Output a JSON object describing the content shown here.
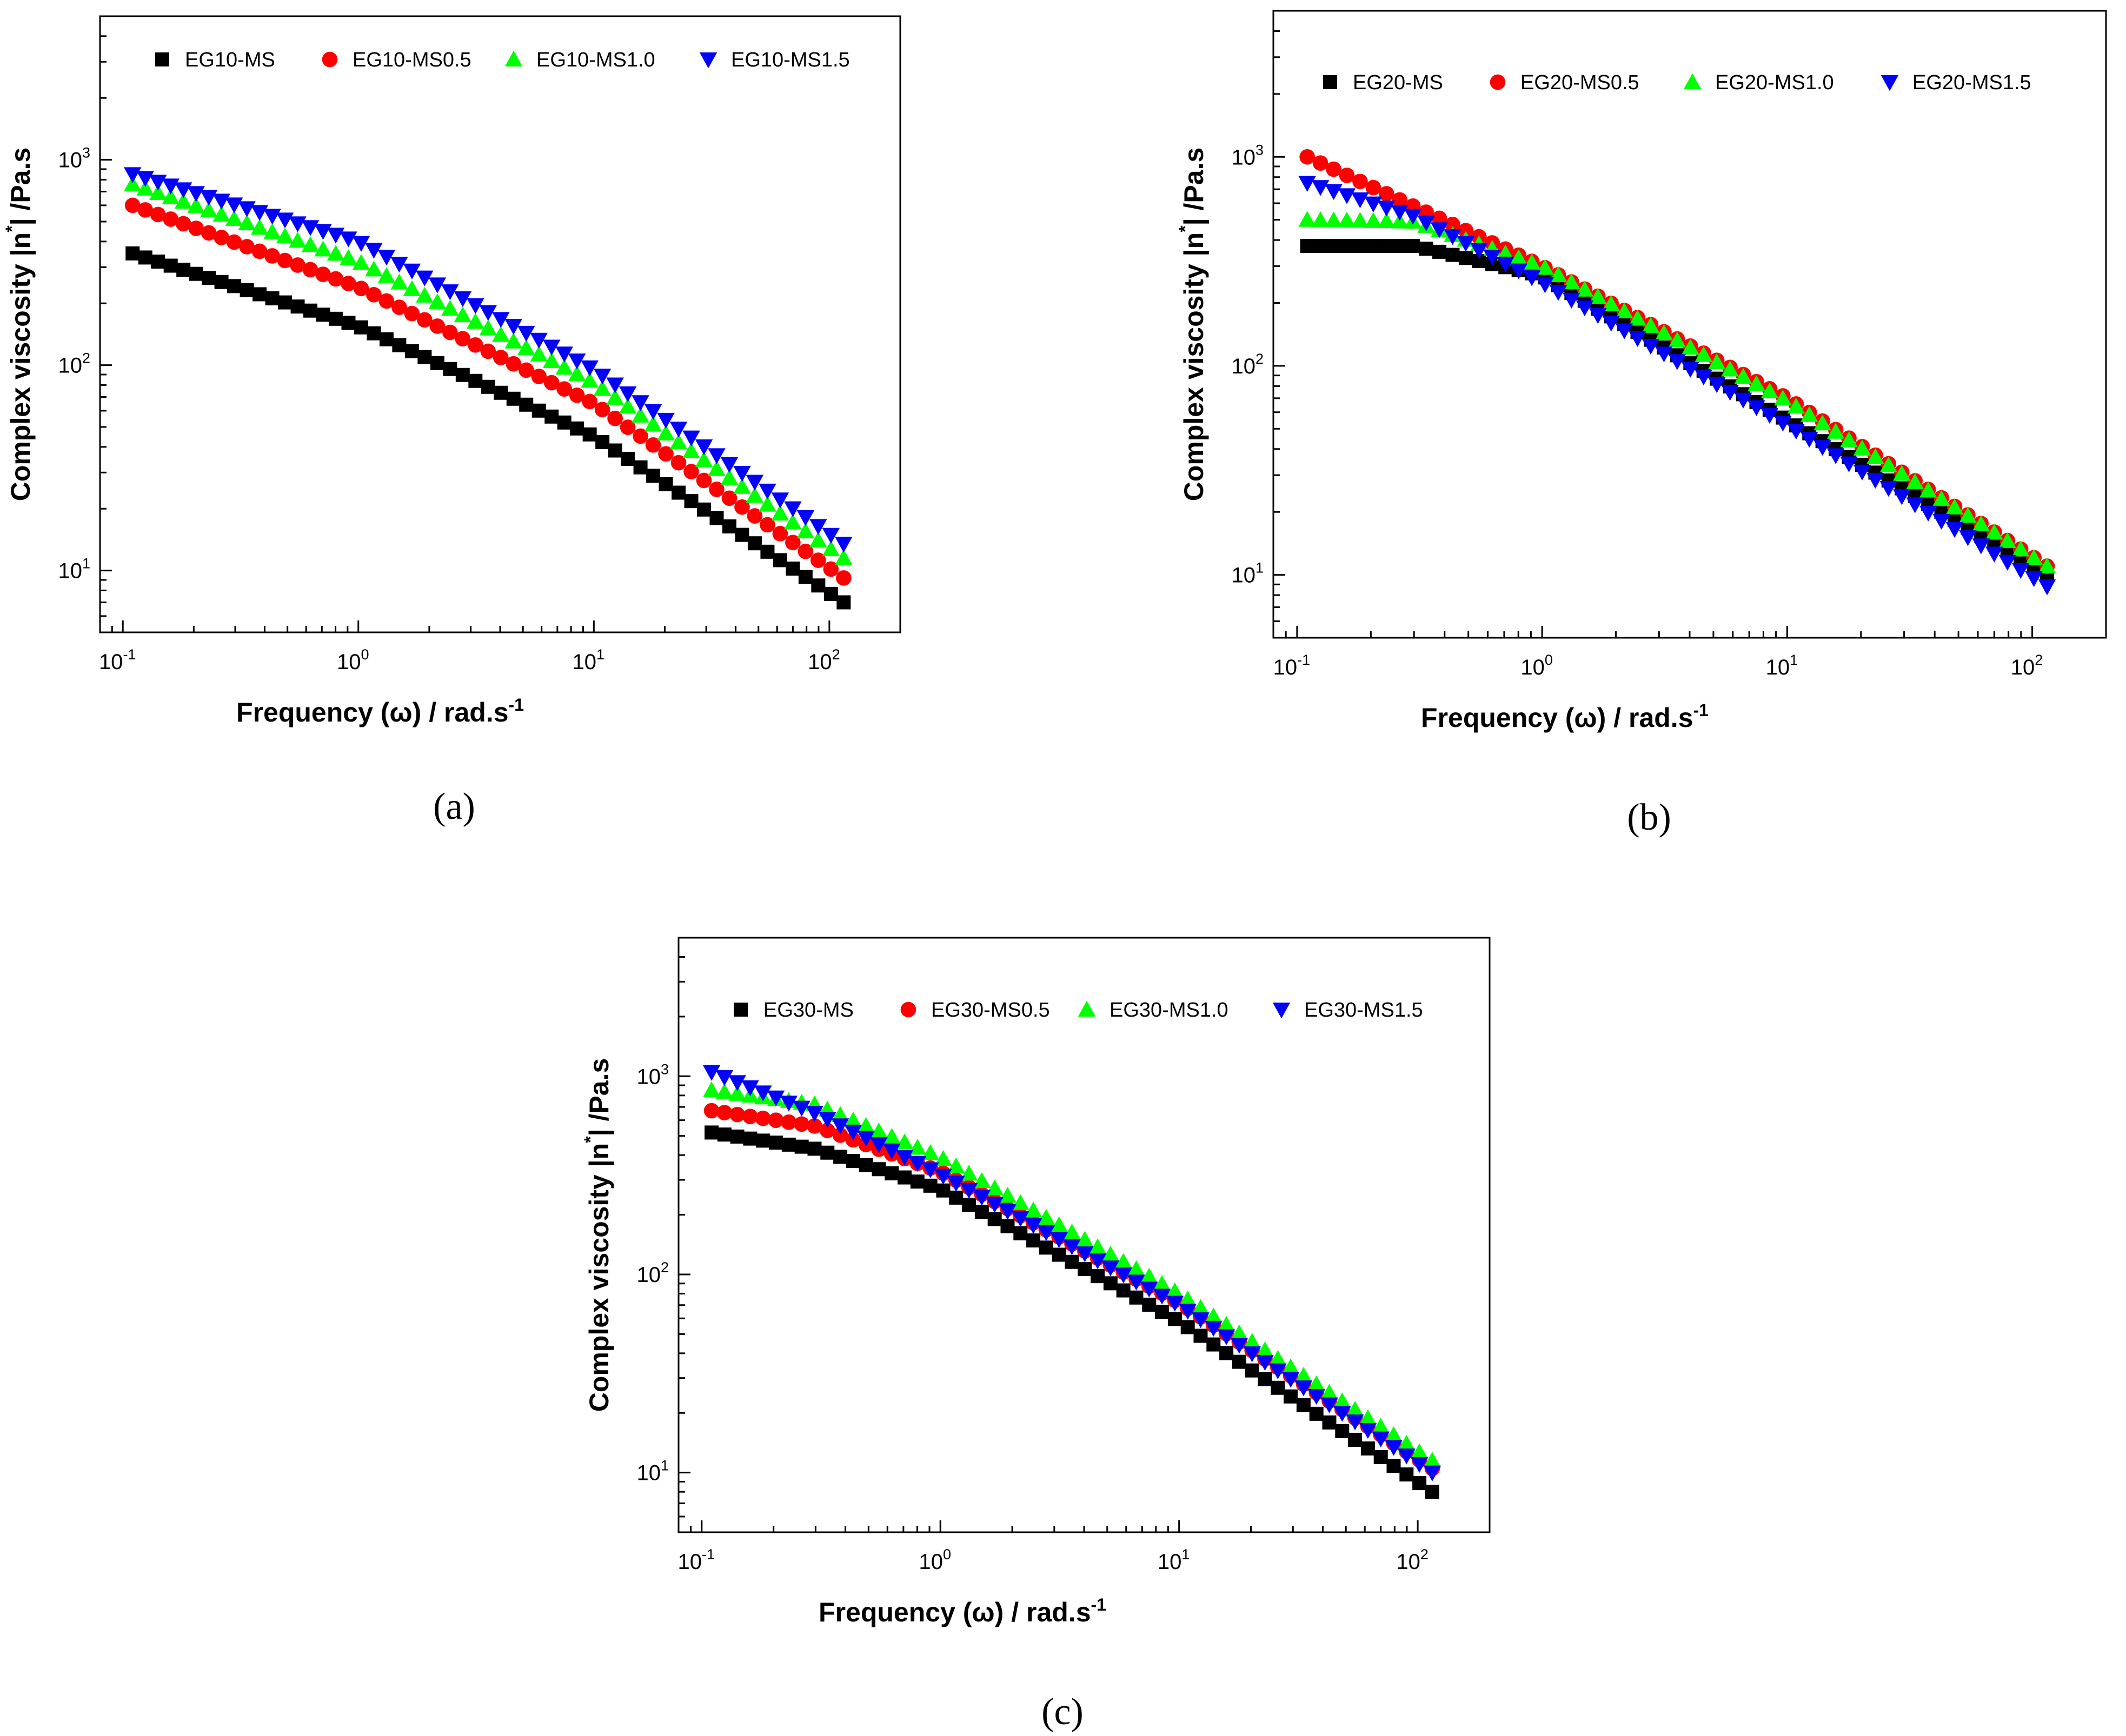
{
  "chart_data": [
    {
      "panel": "(a)",
      "type": "scatter",
      "xlabel": "Frequency (ω) / rad.s",
      "xlabel_sup": "-1",
      "ylabel": "Complex viscosity |n",
      "ylabel_sup": "*",
      "ylabel_tail": "| /Pa.s",
      "x_scale": "log",
      "y_scale": "log",
      "xlim": [
        0.08,
        200
      ],
      "ylim": [
        5,
        5000
      ],
      "x_ticks": [
        {
          "base": "10",
          "exp": "-1"
        },
        {
          "base": "10",
          "exp": "0"
        },
        {
          "base": "10",
          "exp": "1"
        },
        {
          "base": "10",
          "exp": "2"
        }
      ],
      "y_ticks": [
        {
          "base": "10",
          "exp": "1"
        },
        {
          "base": "10",
          "exp": "2"
        },
        {
          "base": "10",
          "exp": "3"
        }
      ],
      "legend_position": "top",
      "x_range": [
        0.11,
        115
      ],
      "n_points": 57,
      "series": [
        {
          "name": "EG10-MS",
          "marker": "square",
          "color": "#000000",
          "anchors": [
            [
              0.11,
              350
            ],
            [
              1,
              155
            ],
            [
              10,
              45
            ],
            [
              115,
              7
            ]
          ]
        },
        {
          "name": "EG10-MS0.5",
          "marker": "circle",
          "color": "#ff0000",
          "anchors": [
            [
              0.11,
              600
            ],
            [
              1,
              240
            ],
            [
              10,
              65
            ],
            [
              115,
              9.2
            ]
          ]
        },
        {
          "name": "EG10-MS1.0",
          "marker": "triangle-up",
          "color": "#00ff00",
          "anchors": [
            [
              0.11,
              760
            ],
            [
              1,
              320
            ],
            [
              10,
              82
            ],
            [
              115,
              11.5
            ]
          ]
        },
        {
          "name": "EG10-MS1.5",
          "marker": "triangle-down",
          "color": "#0000ff",
          "anchors": [
            [
              0.11,
              850
            ],
            [
              1,
              400
            ],
            [
              10,
              95
            ],
            [
              115,
              13.5
            ]
          ]
        }
      ]
    },
    {
      "panel": "(b)",
      "type": "scatter",
      "xlabel": "Frequency (ω) / rad.s",
      "xlabel_sup": "-1",
      "ylabel": "Complex viscosity |n",
      "ylabel_sup": "*",
      "ylabel_tail": "| /Pa.s",
      "x_scale": "log",
      "y_scale": "log",
      "xlim": [
        0.08,
        200
      ],
      "ylim": [
        5,
        5000
      ],
      "x_ticks": [
        {
          "base": "10",
          "exp": "-1"
        },
        {
          "base": "10",
          "exp": "0"
        },
        {
          "base": "10",
          "exp": "1"
        },
        {
          "base": "10",
          "exp": "2"
        }
      ],
      "y_ticks": [
        {
          "base": "10",
          "exp": "1"
        },
        {
          "base": "10",
          "exp": "2"
        },
        {
          "base": "10",
          "exp": "3"
        }
      ],
      "legend_position": "top",
      "x_range": [
        0.11,
        115
      ],
      "n_points": 57,
      "series": [
        {
          "name": "EG20-MS",
          "marker": "square",
          "color": "#000000",
          "anchors": [
            [
              0.11,
              375
            ],
            [
              0.3,
              375
            ],
            [
              1,
              270
            ],
            [
              10,
              55
            ],
            [
              115,
              10
            ]
          ]
        },
        {
          "name": "EG20-MS0.5",
          "marker": "circle",
          "color": "#ff0000",
          "anchors": [
            [
              0.11,
              1000
            ],
            [
              1,
              300
            ],
            [
              10,
              70
            ],
            [
              115,
              11
            ]
          ]
        },
        {
          "name": "EG20-MS1.0",
          "marker": "triangle-up",
          "color": "#00ff00",
          "anchors": [
            [
              0.11,
              500
            ],
            [
              0.3,
              490
            ],
            [
              1,
              300
            ],
            [
              10,
              68
            ],
            [
              115,
              11
            ]
          ]
        },
        {
          "name": "EG20-MS1.5",
          "marker": "triangle-down",
          "color": "#0000ff",
          "anchors": [
            [
              0.11,
              750
            ],
            [
              0.3,
              520
            ],
            [
              1,
              250
            ],
            [
              10,
              52
            ],
            [
              115,
              8.8
            ]
          ]
        }
      ]
    },
    {
      "panel": "(c)",
      "type": "scatter",
      "xlabel": "Frequency (ω) / rad.s",
      "xlabel_sup": "-1",
      "ylabel": "Complex viscosity |n",
      "ylabel_sup": "*",
      "ylabel_tail": "| /Pa.s",
      "x_scale": "log",
      "y_scale": "log",
      "xlim": [
        0.08,
        200
      ],
      "ylim": [
        5,
        5000
      ],
      "x_ticks": [
        {
          "base": "10",
          "exp": "-1"
        },
        {
          "base": "10",
          "exp": "0"
        },
        {
          "base": "10",
          "exp": "1"
        },
        {
          "base": "10",
          "exp": "2"
        }
      ],
      "y_ticks": [
        {
          "base": "10",
          "exp": "1"
        },
        {
          "base": "10",
          "exp": "2"
        },
        {
          "base": "10",
          "exp": "3"
        }
      ],
      "legend_position": "top",
      "x_range": [
        0.11,
        115
      ],
      "n_points": 57,
      "series": [
        {
          "name": "EG30-MS",
          "marker": "square",
          "color": "#000000",
          "anchors": [
            [
              0.11,
              520
            ],
            [
              0.3,
              430
            ],
            [
              1,
              270
            ],
            [
              10,
              58
            ],
            [
              115,
              8
            ]
          ]
        },
        {
          "name": "EG30-MS0.5",
          "marker": "circle",
          "color": "#ff0000",
          "anchors": [
            [
              0.11,
              670
            ],
            [
              0.3,
              560
            ],
            [
              1,
              330
            ],
            [
              10,
              72
            ],
            [
              115,
              10.5
            ]
          ]
        },
        {
          "name": "EG30-MS1.0",
          "marker": "triangle-up",
          "color": "#00ff00",
          "anchors": [
            [
              0.11,
              850
            ],
            [
              0.3,
              720
            ],
            [
              1,
              390
            ],
            [
              10,
              80
            ],
            [
              115,
              11.5
            ]
          ]
        },
        {
          "name": "EG30-MS1.5",
          "marker": "triangle-down",
          "color": "#0000ff",
          "anchors": [
            [
              0.11,
              1050
            ],
            [
              0.3,
              650
            ],
            [
              1,
              320
            ],
            [
              10,
              70
            ],
            [
              115,
              10
            ]
          ]
        }
      ]
    }
  ]
}
